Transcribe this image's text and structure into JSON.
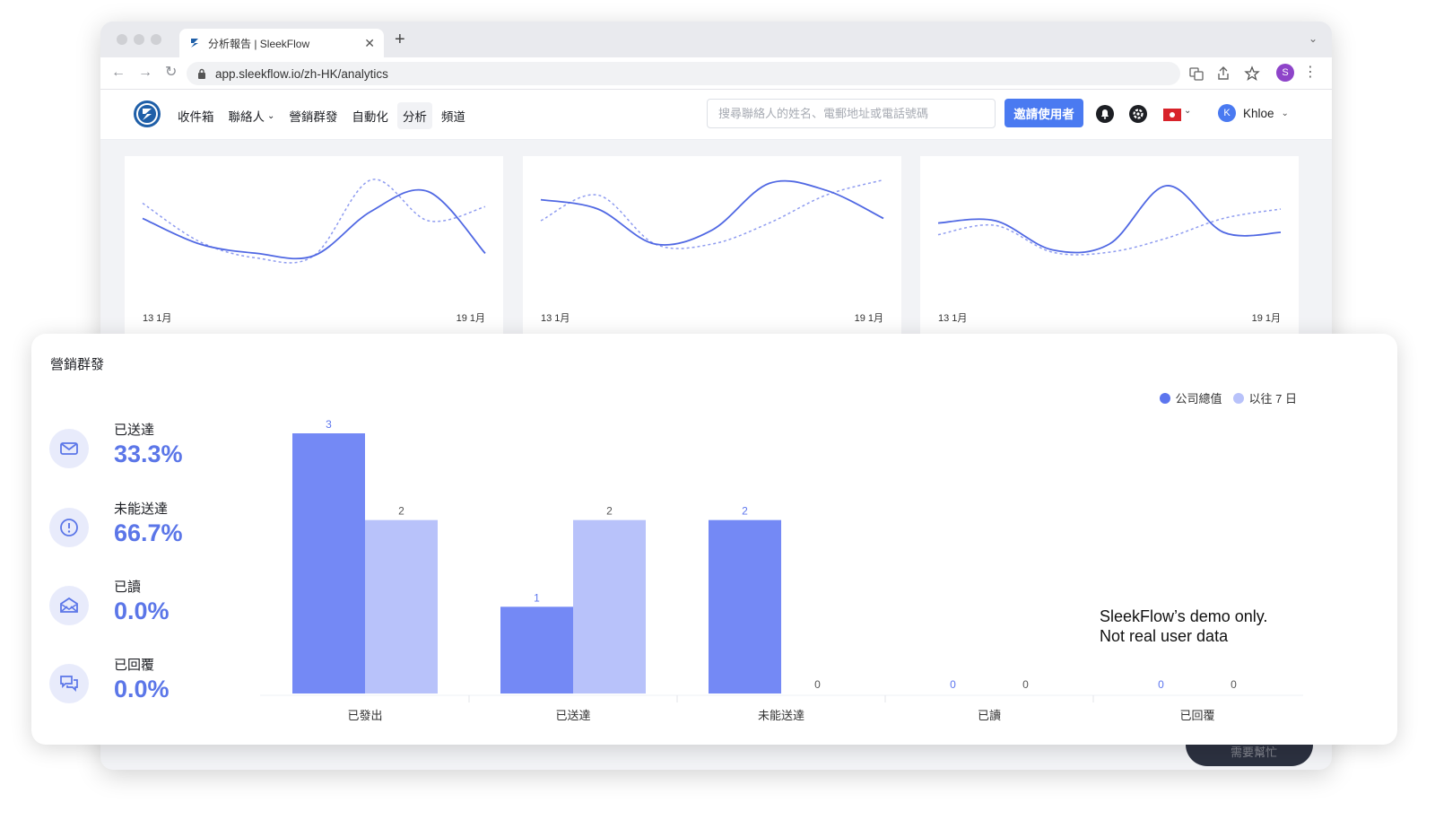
{
  "browser": {
    "tab_title": "分析報告 | SleekFlow",
    "tab_close": "✕",
    "new_tab": "+",
    "tab_menu": "⌄",
    "url": "app.sleekflow.io/zh-HK/analytics",
    "profile_initial": "S",
    "back": "←",
    "forward": "→",
    "reload": "↻",
    "menu": "⋮"
  },
  "header": {
    "nav": [
      {
        "label": "收件箱",
        "has_dropdown": false
      },
      {
        "label": "聯絡人",
        "has_dropdown": true
      },
      {
        "label": "營銷群發",
        "has_dropdown": false
      },
      {
        "label": "自動化",
        "has_dropdown": false
      },
      {
        "label": "分析",
        "has_dropdown": false,
        "active": true
      },
      {
        "label": "頻道",
        "has_dropdown": false
      }
    ],
    "search_placeholder": "搜尋聯絡人的姓名、電郵地址或電話號碼",
    "invite_label": "邀請使用者",
    "user_initial": "K",
    "user_name": "Khloe",
    "chevron": "⌄"
  },
  "mini_charts": [
    {
      "start_label": "13 1月",
      "end_label": "19 1月",
      "solid": [
        0.62,
        0.4,
        0.32,
        0.3,
        0.68,
        0.85,
        0.32
      ],
      "dashed": [
        0.75,
        0.42,
        0.28,
        0.3,
        0.95,
        0.6,
        0.72
      ]
    },
    {
      "start_label": "13 1月",
      "end_label": "19 1月",
      "solid": [
        0.78,
        0.7,
        0.4,
        0.52,
        0.92,
        0.86,
        0.62
      ],
      "dashed": [
        0.6,
        0.82,
        0.4,
        0.4,
        0.58,
        0.82,
        0.95
      ]
    },
    {
      "start_label": "13 1月",
      "end_label": "19 1月",
      "solid": [
        0.58,
        0.6,
        0.35,
        0.4,
        0.9,
        0.5,
        0.5
      ],
      "dashed": [
        0.48,
        0.56,
        0.33,
        0.33,
        0.45,
        0.62,
        0.7
      ]
    }
  ],
  "campaign": {
    "title": "營銷群發",
    "stats": [
      {
        "label": "已送達",
        "value": "33.3%",
        "icon": "mail-icon"
      },
      {
        "label": "未能送達",
        "value": "66.7%",
        "icon": "alert-icon"
      },
      {
        "label": "已讀",
        "value": "0.0%",
        "icon": "open-mail-icon"
      },
      {
        "label": "已回覆",
        "value": "0.0%",
        "icon": "reply-chat-icon"
      }
    ],
    "demo_note_line1": "SleekFlow’s demo only.",
    "demo_note_line2": "Not real user data",
    "help_button": "需要幫忙"
  },
  "chart_data": {
    "type": "bar",
    "categories": [
      "已發出",
      "已送達",
      "未能送達",
      "已讀",
      "已回覆"
    ],
    "series": [
      {
        "name": "公司總值",
        "values": [
          3,
          1,
          2,
          0,
          0
        ],
        "color": "#7489f5"
      },
      {
        "name": "以往 7 日",
        "values": [
          2,
          2,
          0,
          0,
          0
        ],
        "color": "#b8c2fa"
      }
    ],
    "ylim": [
      0,
      3
    ],
    "legend_position": "top-right",
    "grid": false
  }
}
